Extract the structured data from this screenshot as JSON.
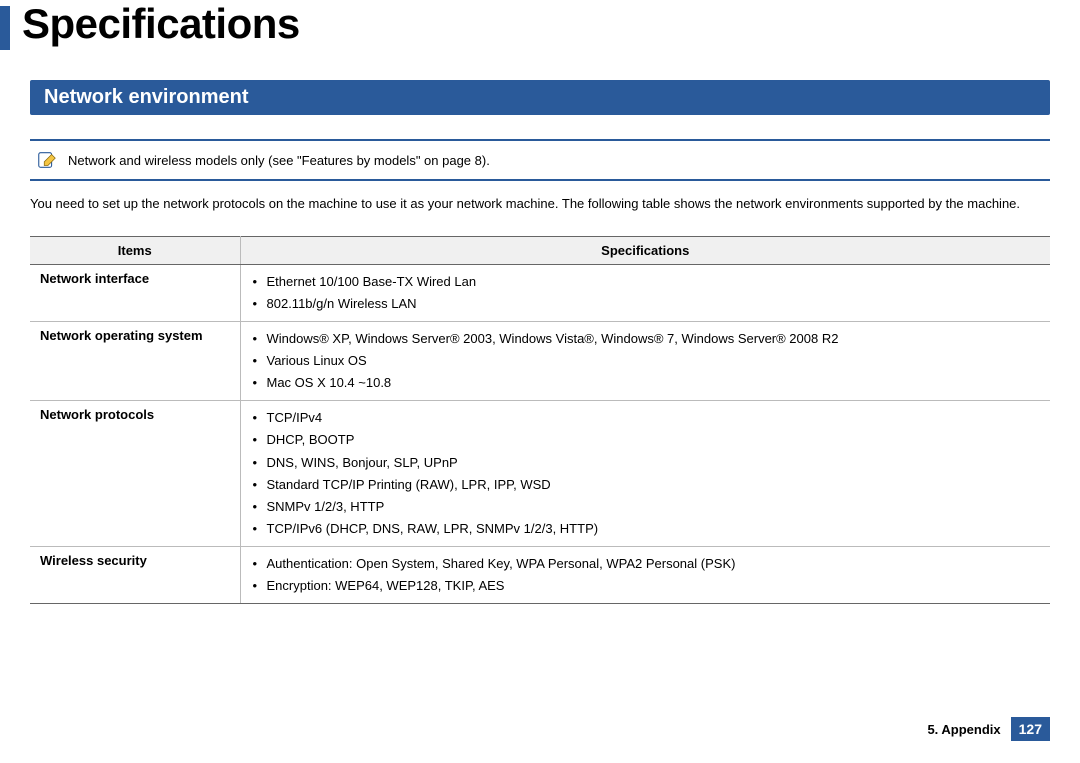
{
  "page": {
    "title": "Specifications",
    "section_title": "Network environment",
    "note_text": "Network and wireless models only (see \"Features by models\" on page 8).",
    "intro_text": "You need to set up the network protocols on the machine to use it as your network machine. The following table shows the network environments supported by the machine.",
    "accent_color": "#2a5a9a",
    "background_color": "#ffffff"
  },
  "table": {
    "header_items": "Items",
    "header_specs": "Specifications",
    "rows": [
      {
        "label": "Network interface",
        "items": [
          "Ethernet 10/100 Base-TX Wired Lan",
          "802.11b/g/n Wireless LAN"
        ]
      },
      {
        "label": "Network operating system",
        "items": [
          "Windows® XP, Windows Server® 2003, Windows Vista®, Windows® 7, Windows Server® 2008 R2",
          "Various Linux OS",
          "Mac OS X 10.4 ~10.8"
        ]
      },
      {
        "label": "Network protocols",
        "items": [
          "TCP/IPv4",
          "DHCP, BOOTP",
          "DNS, WINS, Bonjour, SLP, UPnP",
          "Standard TCP/IP Printing (RAW), LPR, IPP, WSD",
          "SNMPv 1/2/3, HTTP",
          "TCP/IPv6 (DHCP, DNS, RAW, LPR, SNMPv 1/2/3, HTTP)"
        ]
      },
      {
        "label": "Wireless security",
        "items": [
          "Authentication: Open System, Shared Key, WPA Personal, WPA2 Personal (PSK)",
          "Encryption: WEP64, WEP128, TKIP, AES"
        ]
      }
    ]
  },
  "footer": {
    "section": "5. Appendix",
    "page_number": "127"
  }
}
